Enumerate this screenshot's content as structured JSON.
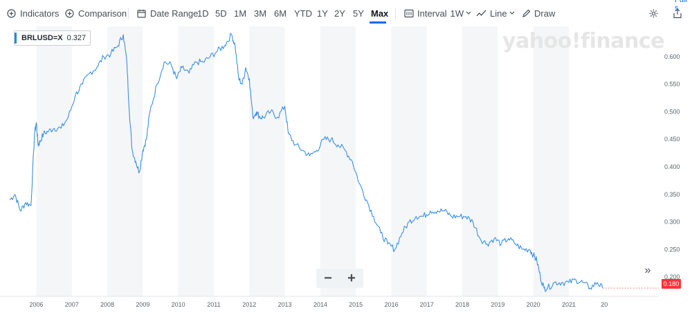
{
  "toolbar": {
    "indicators": "Indicators",
    "comparison": "Comparison",
    "date_range": "Date Range",
    "ranges": [
      "1D",
      "5D",
      "1M",
      "3M",
      "6M",
      "YTD",
      "1Y",
      "2Y",
      "5Y",
      "Max"
    ],
    "active_range": "Max",
    "interval_label": "Interval",
    "interval_value": "1W",
    "chart_type": "Line",
    "draw": "Draw",
    "full_link": "Full s"
  },
  "legend": {
    "symbol": "BRLUSD=X",
    "value": "0.327"
  },
  "watermark": "yahoo!finance",
  "last_price": "0.180",
  "zoom": {
    "minus": "−",
    "plus": "+"
  },
  "scroll_right": "»",
  "colors": {
    "line": "#3a8ee6",
    "accent": "#0f69ff",
    "last_tag": "#ff333a",
    "band": "#f5f6f7"
  },
  "chart_data": {
    "type": "line",
    "title": "",
    "xlabel": "",
    "ylabel": "",
    "ylim": [
      0.165,
      0.655
    ],
    "yticks": [
      "0.200",
      "0.250",
      "0.300",
      "0.350",
      "0.400",
      "0.450",
      "0.500",
      "0.550",
      "0.600"
    ],
    "xticks": [
      "2006",
      "2007",
      "2008",
      "2009",
      "2010",
      "2011",
      "2012",
      "2013",
      "2014",
      "2015",
      "2016",
      "2017",
      "2018",
      "2019",
      "2020",
      "2021",
      "20"
    ],
    "series": [
      {
        "name": "",
        "x": [
          2005.25,
          2005.4,
          2005.55,
          2005.7,
          2005.85,
          2005.95,
          2006.0,
          2006.05,
          2006.1,
          2006.2,
          2006.35,
          2006.5,
          2006.7,
          2006.9,
          2007.1,
          2007.3,
          2007.5,
          2007.7,
          2007.9,
          2008.1,
          2008.3,
          2008.45,
          2008.55,
          2008.62,
          2008.7,
          2008.8,
          2008.9,
          2009.0,
          2009.1,
          2009.2,
          2009.4,
          2009.6,
          2009.8,
          2009.95,
          2010.1,
          2010.3,
          2010.5,
          2010.7,
          2010.9,
          2011.1,
          2011.3,
          2011.5,
          2011.6,
          2011.7,
          2011.8,
          2011.9,
          2012.0,
          2012.1,
          2012.2,
          2012.3,
          2012.4,
          2012.6,
          2012.8,
          2013.0,
          2013.1,
          2013.3,
          2013.5,
          2013.7,
          2013.9,
          2014.1,
          2014.3,
          2014.5,
          2014.7,
          2014.9,
          2015.1,
          2015.3,
          2015.5,
          2015.7,
          2015.9,
          2016.1,
          2016.3,
          2016.5,
          2016.7,
          2016.9,
          2017.1,
          2017.3,
          2017.5,
          2017.7,
          2017.9,
          2018.1,
          2018.3,
          2018.5,
          2018.7,
          2018.9,
          2019.1,
          2019.3,
          2019.5,
          2019.7,
          2019.9,
          2020.0,
          2020.1,
          2020.2,
          2020.3,
          2020.4,
          2020.6,
          2020.8,
          2021.0,
          2021.2,
          2021.4,
          2021.6,
          2021.8,
          2021.95
        ],
        "y": [
          0.34,
          0.35,
          0.32,
          0.335,
          0.33,
          0.46,
          0.48,
          0.44,
          0.445,
          0.46,
          0.465,
          0.47,
          0.47,
          0.49,
          0.53,
          0.55,
          0.57,
          0.58,
          0.6,
          0.605,
          0.62,
          0.64,
          0.59,
          0.5,
          0.43,
          0.41,
          0.39,
          0.43,
          0.45,
          0.5,
          0.55,
          0.59,
          0.585,
          0.56,
          0.58,
          0.57,
          0.59,
          0.59,
          0.6,
          0.61,
          0.62,
          0.64,
          0.62,
          0.56,
          0.55,
          0.58,
          0.56,
          0.49,
          0.5,
          0.49,
          0.49,
          0.5,
          0.49,
          0.51,
          0.46,
          0.44,
          0.43,
          0.42,
          0.43,
          0.45,
          0.45,
          0.44,
          0.43,
          0.41,
          0.37,
          0.34,
          0.31,
          0.28,
          0.26,
          0.25,
          0.28,
          0.3,
          0.31,
          0.31,
          0.32,
          0.32,
          0.32,
          0.31,
          0.31,
          0.31,
          0.3,
          0.27,
          0.26,
          0.27,
          0.26,
          0.27,
          0.26,
          0.25,
          0.25,
          0.24,
          0.23,
          0.2,
          0.18,
          0.18,
          0.19,
          0.19,
          0.19,
          0.195,
          0.19,
          0.18,
          0.19,
          0.18
        ]
      }
    ]
  }
}
